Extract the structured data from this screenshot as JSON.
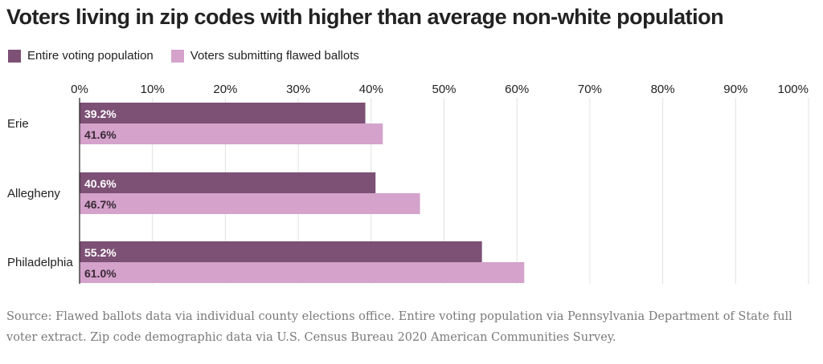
{
  "chart_data": {
    "type": "bar",
    "orientation": "horizontal",
    "title": "Voters living in zip codes with higher than average non-white population",
    "categories": [
      "Erie",
      "Allegheny",
      "Philadelphia"
    ],
    "series": [
      {
        "name": "Entire voting population",
        "color": "#7d5075",
        "values": [
          39.2,
          40.6,
          55.2
        ],
        "labels": [
          "39.2%",
          "40.6%",
          "55.2%"
        ]
      },
      {
        "name": "Voters submitting flawed ballots",
        "color": "#d4a2cb",
        "values": [
          41.6,
          46.7,
          61.0
        ],
        "labels": [
          "41.6%",
          "46.7%",
          "61.0%"
        ]
      }
    ],
    "xlim": [
      0,
      100
    ],
    "xticks": [
      0,
      10,
      20,
      30,
      40,
      50,
      60,
      70,
      80,
      90,
      100
    ],
    "xtick_labels": [
      "0%",
      "10%",
      "20%",
      "30%",
      "40%",
      "50%",
      "60%",
      "70%",
      "80%",
      "90%",
      "100%"
    ],
    "grid": true,
    "legend": "top-left"
  },
  "source_text": "Source: Flawed ballots data via individual county elections office. Entire voting population via Pennsylvania Department of State full voter extract. Zip code demographic data via U.S. Census Bureau 2020 American Communities Survey."
}
